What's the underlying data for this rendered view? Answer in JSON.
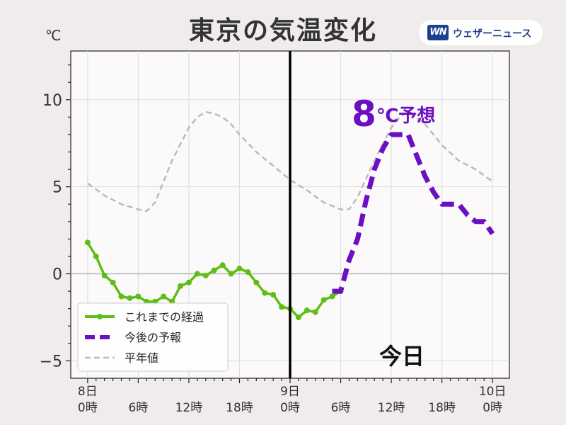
{
  "header": {
    "title": "東京の気温変化",
    "unit": "℃"
  },
  "brand": {
    "logo_text": "WN",
    "name": "ウェザーニュース"
  },
  "colors": {
    "observed": "#5cbf12",
    "forecast": "#6a0fc2",
    "normal": "#bbbbbb",
    "now_line": "#000000",
    "background": "#efeceb",
    "plot_bg": "#fbf9fa"
  },
  "chart_data": {
    "type": "line",
    "title": "東京の気温変化",
    "ylabel": "℃",
    "ylim": [
      -6,
      12.8
    ],
    "xlim": [
      -2,
      50
    ],
    "yticks": [
      10,
      5,
      0,
      -5
    ],
    "ytick_labels": [
      "10",
      "5",
      "0",
      "−5"
    ],
    "grid": true,
    "x_ticks": [
      {
        "x": 0,
        "line1": "8日",
        "line2": "0時"
      },
      {
        "x": 6,
        "line1": "",
        "line2": "6時"
      },
      {
        "x": 12,
        "line1": "",
        "line2": "12時"
      },
      {
        "x": 18,
        "line1": "",
        "line2": "18時"
      },
      {
        "x": 24,
        "line1": "9日",
        "line2": "0時"
      },
      {
        "x": 30,
        "line1": "",
        "line2": "6時"
      },
      {
        "x": 36,
        "line1": "",
        "line2": "12時"
      },
      {
        "x": 42,
        "line1": "",
        "line2": "18時"
      },
      {
        "x": 48,
        "line1": "10日",
        "line2": "0時"
      }
    ],
    "now_x": 24,
    "now_label": "今日",
    "annotation": {
      "value": "8",
      "text": "℃予想"
    },
    "legend": {
      "position": "lower-left",
      "entries": [
        "これまでの経過",
        "今後の予報",
        "平年値"
      ]
    },
    "series": [
      {
        "name": "これまでの経過",
        "style": "solid-marker",
        "x": [
          0,
          1,
          2,
          3,
          4,
          5,
          6,
          7,
          8,
          9,
          10,
          11,
          12,
          13,
          14,
          15,
          16,
          17,
          18,
          19,
          20,
          21,
          22,
          23,
          24,
          25,
          26,
          27,
          28,
          29,
          30
        ],
        "values": [
          1.8,
          1.0,
          -0.1,
          -0.5,
          -1.3,
          -1.4,
          -1.3,
          -1.6,
          -1.6,
          -1.3,
          -1.6,
          -0.7,
          -0.5,
          0.0,
          -0.1,
          0.2,
          0.5,
          0.0,
          0.3,
          0.1,
          -0.5,
          -1.1,
          -1.2,
          -1.9,
          -2.0,
          -2.5,
          -2.1,
          -2.2,
          -1.5,
          -1.3,
          -1.0
        ]
      },
      {
        "name": "今後の予報",
        "style": "dashed-thick",
        "x": [
          29,
          30,
          31,
          32,
          33,
          34,
          35,
          36,
          37,
          38,
          39,
          40,
          41,
          42,
          43,
          44,
          45,
          46,
          47,
          48
        ],
        "values": [
          -1.0,
          -1.0,
          0.8,
          2.0,
          4.2,
          6.0,
          7.2,
          8.0,
          8.0,
          8.0,
          6.8,
          5.6,
          4.7,
          4.0,
          4.0,
          4.0,
          3.4,
          3.0,
          3.0,
          2.3
        ]
      },
      {
        "name": "平年値",
        "style": "dashed-thin",
        "x": [
          0,
          2,
          4,
          6,
          7,
          8,
          10,
          12,
          13,
          14,
          15,
          16,
          17,
          18,
          20,
          22,
          24,
          26,
          28,
          30,
          31,
          32,
          34,
          36,
          37,
          38,
          40,
          42,
          44,
          46,
          48
        ],
        "values": [
          5.2,
          4.5,
          4.0,
          3.7,
          3.6,
          4.1,
          6.5,
          8.4,
          9.0,
          9.3,
          9.2,
          9.0,
          8.6,
          8.0,
          7.0,
          6.2,
          5.4,
          4.8,
          4.1,
          3.7,
          3.7,
          4.4,
          6.5,
          8.4,
          9.0,
          9.3,
          8.6,
          7.4,
          6.5,
          6.0,
          5.3
        ]
      }
    ]
  }
}
